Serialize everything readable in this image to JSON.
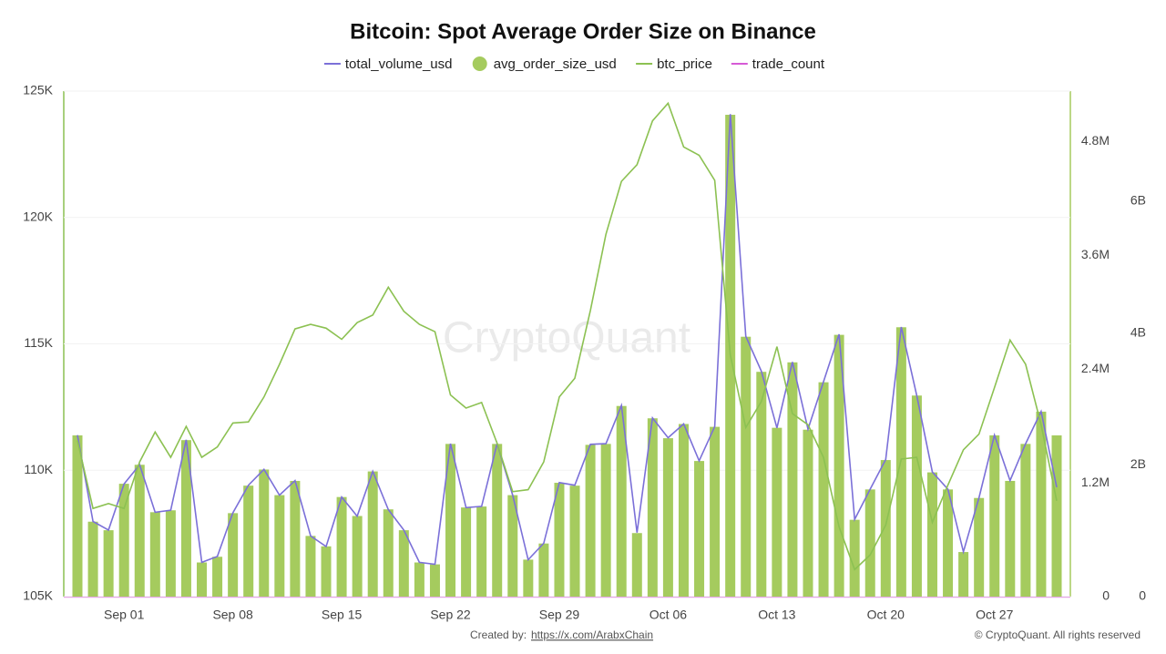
{
  "chart_data": {
    "type": "combo",
    "title": "Bitcoin: Spot Average Order Size on Binance",
    "watermark": "CryptoQuant",
    "created_by_label": "Created by:",
    "created_by_link": "https://x.com/ArabxChain",
    "copyright": "© CryptoQuant. All rights reserved",
    "categories": [
      null,
      null,
      null,
      "Sep 01",
      null,
      null,
      null,
      null,
      null,
      null,
      "Sep 08",
      null,
      null,
      null,
      null,
      null,
      null,
      "Sep 15",
      null,
      null,
      null,
      null,
      null,
      null,
      "Sep 22",
      null,
      null,
      null,
      null,
      null,
      null,
      "Sep 29",
      null,
      null,
      null,
      null,
      null,
      null,
      "Oct 06",
      null,
      null,
      null,
      null,
      null,
      null,
      "Oct 13",
      null,
      null,
      null,
      null,
      null,
      null,
      "Oct 20",
      null,
      null,
      null,
      null,
      null,
      null,
      "Oct 27",
      null,
      null,
      null,
      null
    ],
    "ylim": [
      105000,
      125000
    ],
    "yticks": [
      {
        "value": 105000,
        "label": "105K"
      },
      {
        "value": 110000,
        "label": "110K"
      },
      {
        "value": 115000,
        "label": "115K"
      },
      {
        "value": 120000,
        "label": "120K"
      },
      {
        "value": 125000,
        "label": "125K"
      }
    ],
    "y2lim": [
      0,
      5330000
    ],
    "y2ticks": [
      0,
      {
        "value": 1200000,
        "label": "1.2M"
      },
      {
        "value": 2400000,
        "label": "2.4M"
      },
      {
        "value": 3600000,
        "label": "3.6M"
      },
      {
        "value": 4800000,
        "label": "4.8M"
      }
    ],
    "y3lim": [
      0,
      7670000000
    ],
    "y3ticks": [
      0,
      {
        "value": 2000000000,
        "label": "2B"
      },
      {
        "value": 4000000000,
        "label": "4B"
      },
      {
        "value": 6000000000,
        "label": "6B"
      }
    ],
    "grid": true,
    "series": [
      {
        "name": "total_volume_usd",
        "type": "line",
        "axis": "y3",
        "color": "#7b70d8",
        "values": [
          2450000000.0,
          1140000000.0,
          1010000000.0,
          1710000000.0,
          2000000000.0,
          1280000000.0,
          1310000000.0,
          2380000000.0,
          520000000.0,
          610000000.0,
          1270000000.0,
          1690000000.0,
          1930000000.0,
          1540000000.0,
          1760000000.0,
          920000000.0,
          760000000.0,
          1510000000.0,
          1220000000.0,
          1900000000.0,
          1320000000.0,
          1010000000.0,
          520000000.0,
          490000000.0,
          2320000000.0,
          1350000000.0,
          1370000000.0,
          2320000000.0,
          1540000000.0,
          560000000.0,
          810000000.0,
          1730000000.0,
          1690000000.0,
          2310000000.0,
          2320000000.0,
          2900000000.0,
          970000000.0,
          2710000000.0,
          2410000000.0,
          2620000000.0,
          2060000000.0,
          2580000000.0,
          7320000000.0,
          3950000000.0,
          3420000000.0,
          2560000000.0,
          3560000000.0,
          2540000000.0,
          3260000000.0,
          3980000000.0,
          1170000000.0,
          1630000000.0,
          2080000000.0,
          4090000000.0,
          3050000000.0,
          1890000000.0,
          1630000000.0,
          680000000.0,
          1500000000.0,
          2450000000.0,
          1760000000.0,
          2320000000.0,
          2810000000.0,
          1660000000.0
        ]
      },
      {
        "name": "avg_order_size_usd",
        "type": "bar",
        "axis": "y2",
        "color": "#a5cb5e",
        "values": [
          1700000,
          790000,
          700000,
          1190000,
          1390000,
          890000,
          910000,
          1650000,
          360000,
          420000,
          880000,
          1170000,
          1340000,
          1070000,
          1220000,
          640000,
          530000,
          1050000,
          850000,
          1320000,
          920000,
          700000,
          360000,
          340000,
          1610000,
          940000,
          950000,
          1610000,
          1070000,
          390000,
          560000,
          1200000,
          1170000,
          1600000,
          1610000,
          2010000,
          670000,
          1880000,
          1670000,
          1820000,
          1430000,
          1790000,
          5080000,
          2740000,
          2370000,
          1780000,
          2470000,
          1760000,
          2260000,
          2760000,
          810000,
          1130000,
          1440000,
          2840000,
          2120000,
          1310000,
          1130000,
          470000,
          1040000,
          1700000,
          1220000,
          1610000,
          1950000,
          1700000
        ]
      },
      {
        "name": "btc_price",
        "type": "line",
        "axis": "y",
        "color": "#8cc152",
        "values": [
          111180,
          108490,
          108680,
          108490,
          110330,
          111510,
          110510,
          111730,
          110510,
          110920,
          111870,
          111910,
          112900,
          114190,
          115590,
          115770,
          115620,
          115180,
          115840,
          116140,
          117240,
          116290,
          115770,
          115480,
          112980,
          112460,
          112680,
          111070,
          109150,
          109230,
          110330,
          112900,
          113640,
          116320,
          119340,
          121430,
          122090,
          123820,
          124520,
          122790,
          122460,
          121470,
          114560,
          111690,
          112720,
          114890,
          112240,
          111800,
          110510,
          107760,
          106070,
          106650,
          107830,
          110440,
          110510,
          107940,
          109410,
          110810,
          111430,
          113270,
          115150,
          114190,
          111800,
          108790
        ]
      },
      {
        "name": "trade_count",
        "type": "line",
        "axis": "y",
        "color": "#d65ad6",
        "values": [
          null,
          null,
          null,
          null,
          null,
          null,
          null,
          null,
          null,
          null,
          null,
          null,
          null,
          null,
          null,
          null,
          null,
          null,
          null,
          null,
          null,
          null,
          null,
          null,
          null,
          null,
          null,
          null,
          null,
          null,
          null,
          null,
          null,
          null,
          null,
          null,
          null,
          null,
          null,
          null,
          null,
          null,
          null,
          null,
          null,
          null,
          null,
          null,
          null,
          null,
          null,
          null,
          null,
          null,
          null,
          null,
          null,
          null,
          null,
          null,
          null,
          null,
          null,
          null
        ]
      }
    ]
  }
}
